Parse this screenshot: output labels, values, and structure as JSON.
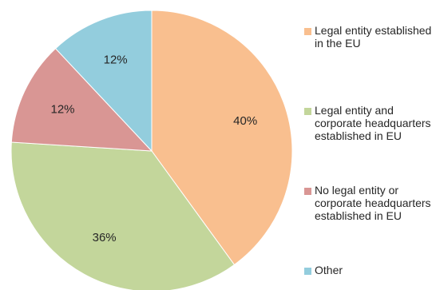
{
  "chart_data": {
    "type": "pie",
    "title": "",
    "slices": [
      {
        "label": "Legal entity established in the EU",
        "value": 40,
        "value_label": "40%",
        "color": "#F9BF8F"
      },
      {
        "label": "Legal entity and corporate headquarters established in EU",
        "value": 36,
        "value_label": "36%",
        "color": "#C3D69B"
      },
      {
        "label": "No legal entity or corporate headquarters established in EU",
        "value": 12,
        "value_label": "12%",
        "color": "#D99694"
      },
      {
        "label": "Other",
        "value": 12,
        "value_label": "12%",
        "color": "#93CDDD"
      }
    ],
    "start_angle": "12 o'clock",
    "direction": "clockwise",
    "legend_position": "right"
  }
}
